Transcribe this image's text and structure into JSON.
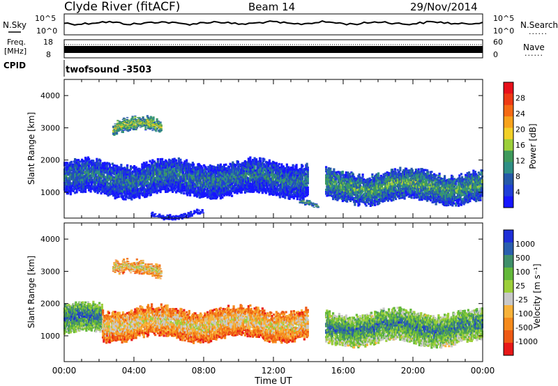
{
  "header": {
    "station": "Clyde River (fitACF)",
    "beam": "Beam 14",
    "date": "29/Nov/2014"
  },
  "strips": {
    "nsky_label": "N.Sky",
    "nsky_ticks": [
      "10^5",
      "10^0"
    ],
    "nsearch_label": "N.Search",
    "nsearch_ticks": [
      "10^5",
      "10^0"
    ],
    "freq_label_top": "Freq.",
    "freq_label_bottom": "[MHz]",
    "freq_ticks": [
      "18",
      "8"
    ],
    "nave_label": "Nave",
    "nave_ticks": [
      "60",
      "0"
    ],
    "cpid_label": "CPID",
    "cpid_value": "twofsound -3503",
    "dots": "......"
  },
  "chart_data": [
    {
      "type": "heatmap",
      "name": "power",
      "ylabel": "Slant Range [km]",
      "xlabel": "Time UT",
      "ylim": [
        200,
        4500
      ],
      "yticks": [
        "4000",
        "3000",
        "2000",
        "1000"
      ],
      "xticks": [
        "00:00",
        "04:00",
        "08:00",
        "12:00",
        "16:00",
        "20:00",
        "00:00"
      ],
      "colorbar": {
        "label": "Power [dB]",
        "ticks": [
          "28",
          "24",
          "20",
          "16",
          "12",
          "8",
          "4"
        ],
        "colors": [
          "#e8101a",
          "#ee3a14",
          "#f56a14",
          "#f7a21c",
          "#f2d028",
          "#9ccf3a",
          "#3f9a5c",
          "#2f8f85",
          "#2559a8",
          "#1f3fd8",
          "#1616ff"
        ]
      },
      "bands": [
        {
          "t0": 0.0,
          "t1": 14.0,
          "r0": 850,
          "r1": 2000,
          "level": 0.7
        },
        {
          "t0": 15.0,
          "t1": 24.0,
          "r0": 650,
          "r1": 1700,
          "level": 0.6
        },
        {
          "t0": 2.8,
          "t1": 5.6,
          "r0": 2800,
          "r1": 3300,
          "level": 0.45
        },
        {
          "t0": 5.0,
          "t1": 8.0,
          "r0": 250,
          "r1": 450,
          "level": 0.85
        },
        {
          "t0": 13.5,
          "t1": 14.6,
          "r0": 600,
          "r1": 800,
          "level": 0.55
        }
      ]
    },
    {
      "type": "heatmap",
      "name": "velocity",
      "ylabel": "Slant Range [km]",
      "xlabel": "Time UT",
      "ylim": [
        200,
        4500
      ],
      "yticks": [
        "4000",
        "3000",
        "2000",
        "1000"
      ],
      "xticks": [
        "00:00",
        "04:00",
        "08:00",
        "12:00",
        "16:00",
        "20:00",
        "00:00"
      ],
      "colorbar": {
        "label": "Velocity [m s⁻¹]",
        "ticks": [
          "1000",
          "500",
          "100",
          "25",
          "-25",
          "-100",
          "-500",
          "-1000"
        ],
        "colors": [
          "#1f2fd8",
          "#2a5fae",
          "#3f8f6a",
          "#63b83a",
          "#9ccf3a",
          "#c8c8c8",
          "#f7b23a",
          "#f58a1c",
          "#ee5a14",
          "#e81818"
        ]
      },
      "bands": [
        {
          "t0": 0.0,
          "t1": 2.2,
          "r0": 1000,
          "r1": 2000,
          "level": 0.15
        },
        {
          "t0": 2.2,
          "t1": 14.0,
          "r0": 850,
          "r1": 1900,
          "level": 0.55
        },
        {
          "t0": 15.0,
          "t1": 24.0,
          "r0": 700,
          "r1": 1800,
          "level": 0.2
        },
        {
          "t0": 2.8,
          "t1": 5.6,
          "r0": 2800,
          "r1": 3300,
          "level": 0.5
        }
      ]
    }
  ]
}
